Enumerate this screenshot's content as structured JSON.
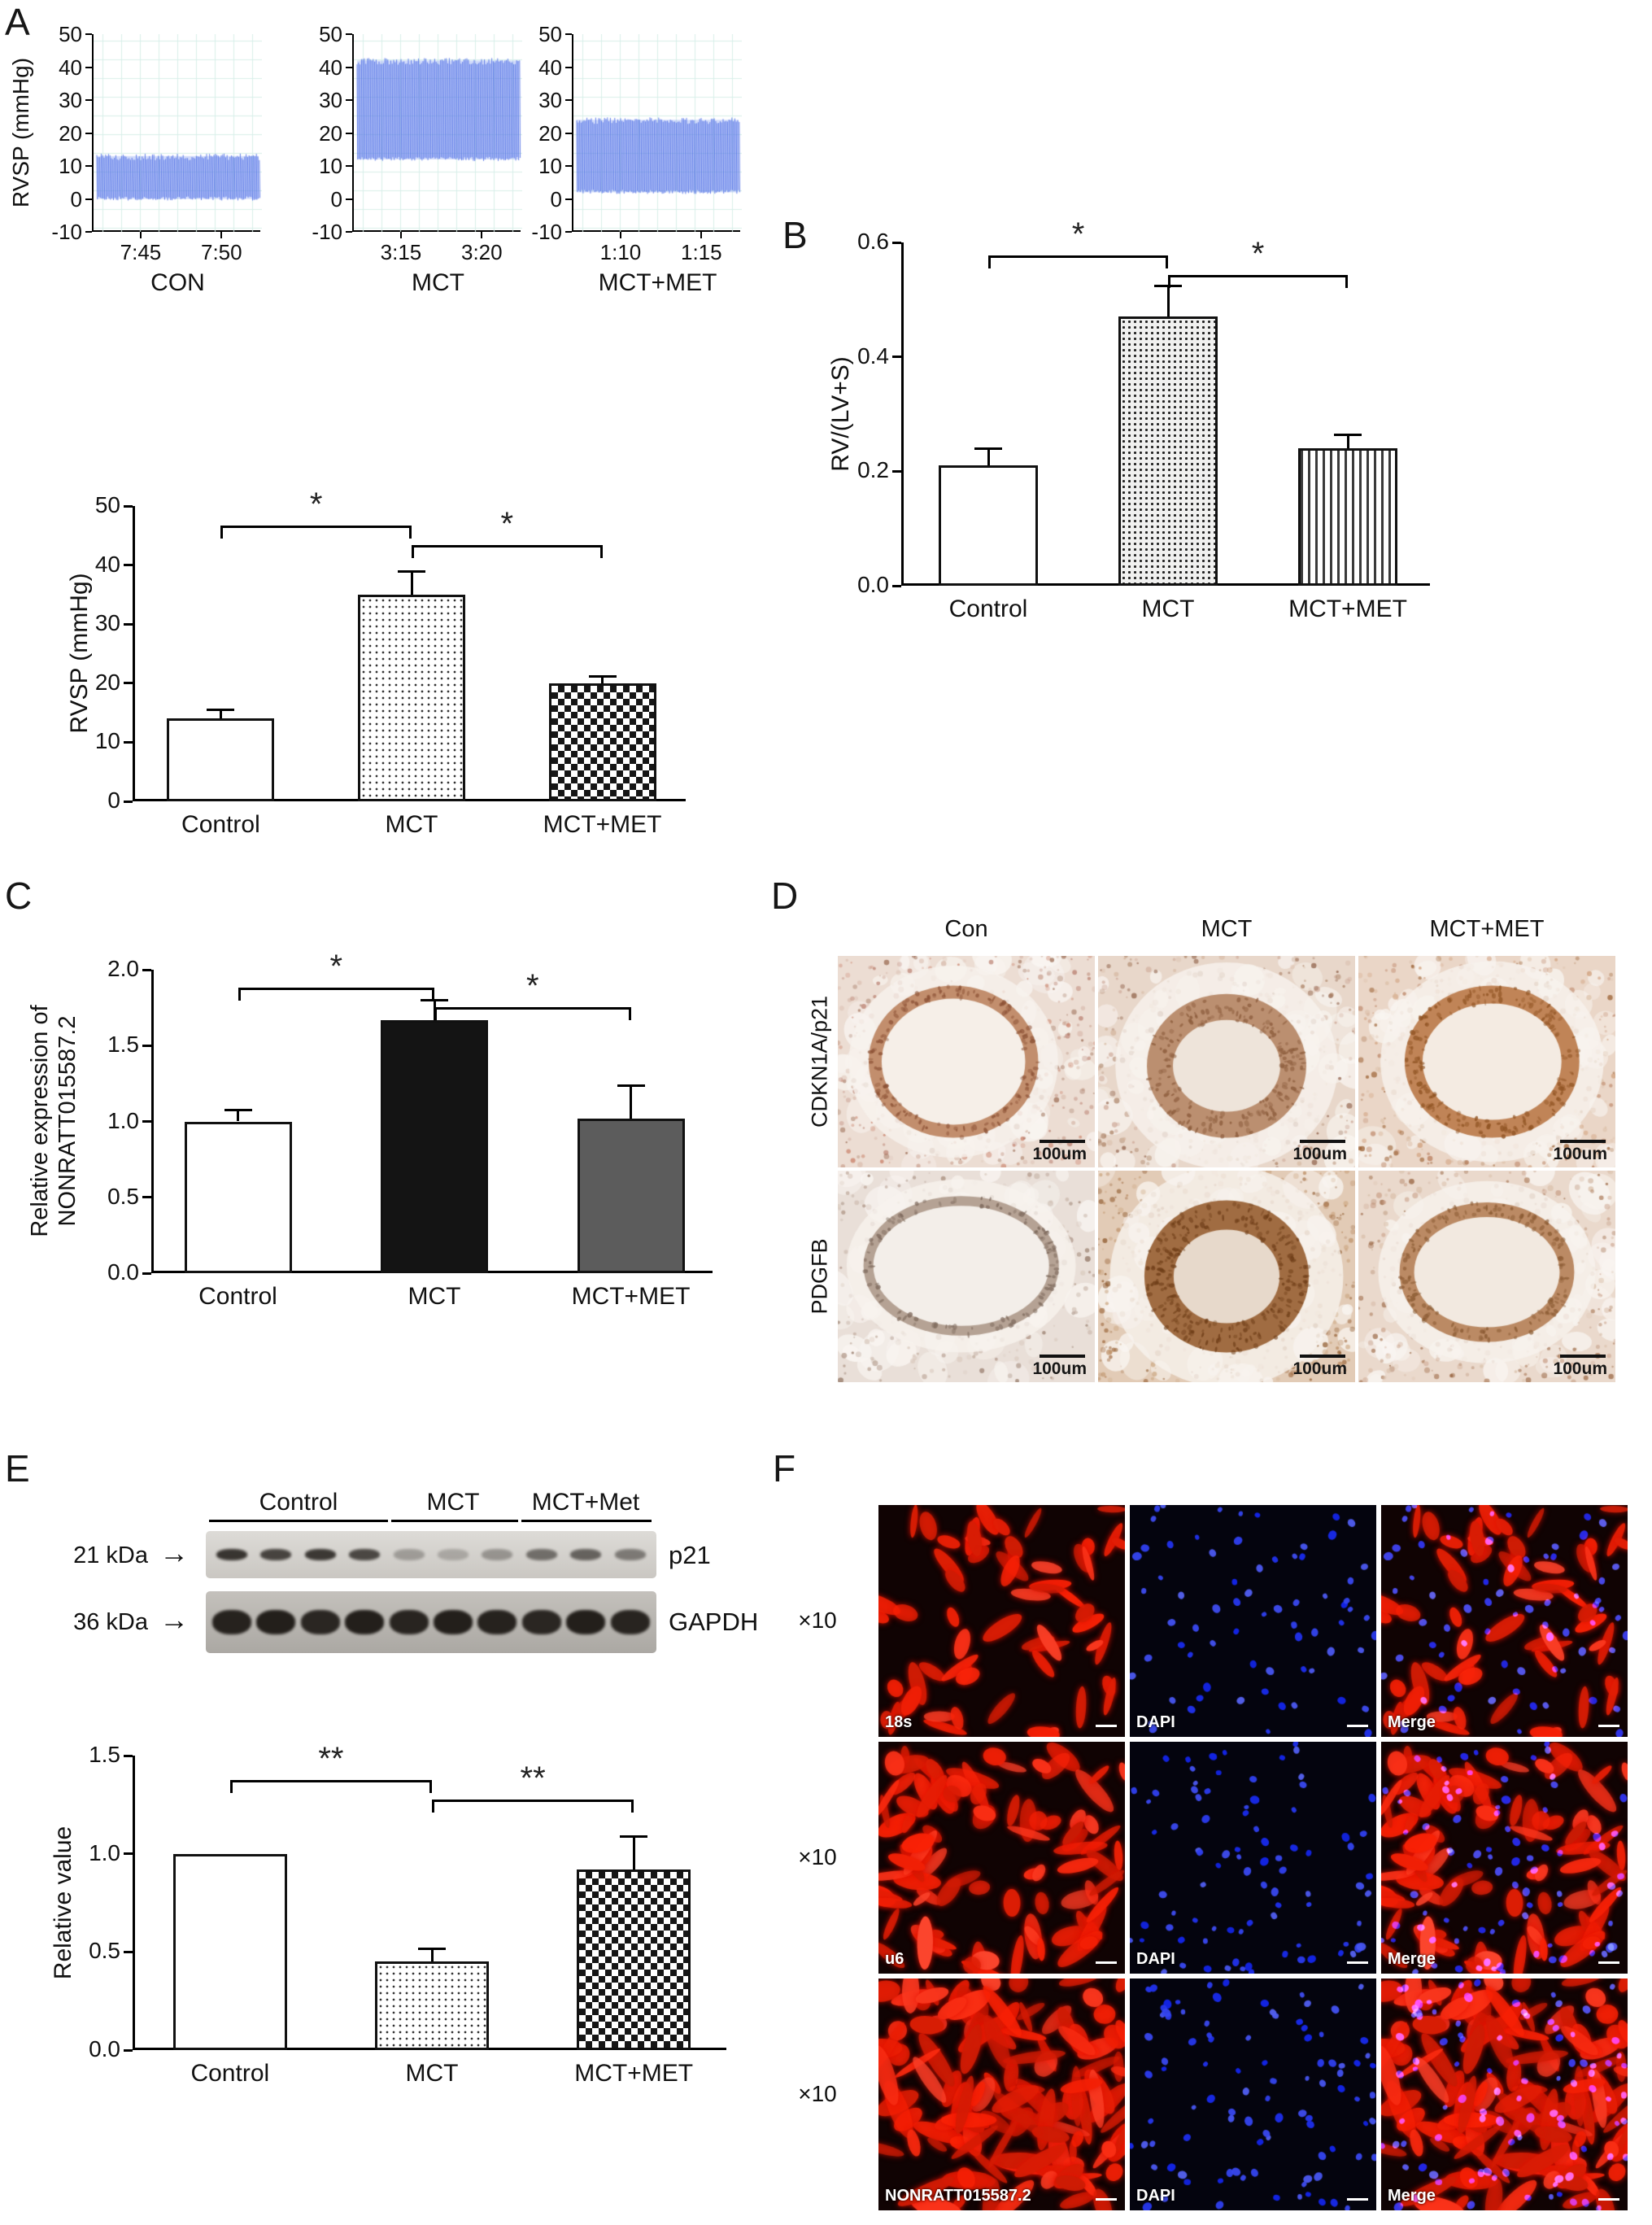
{
  "colors": {
    "trace_blue": "#4868e4",
    "grid_mint": "#d8efe9",
    "dapi_blue": "#3746e8",
    "signal_red": "#e41000",
    "stain_brown": "#a06c42",
    "bar_black": "#141414",
    "bar_gray": "#5c5c5c"
  },
  "panelA": {
    "label": "A",
    "traces_ylabel": "RVSP (mmHg)"
  },
  "panelB": {
    "label": "B"
  },
  "panelC": {
    "label": "C"
  },
  "panelD": {
    "label": "D",
    "columns": [
      "Con",
      "MCT",
      "MCT+MET"
    ],
    "rows": [
      "CDKN1A/p21",
      "PDGFB"
    ],
    "scale_bar": "100um"
  },
  "panelE": {
    "label": "E",
    "groups": [
      "Control",
      "MCT",
      "MCT+Met"
    ],
    "blots": [
      {
        "size_label": "21 kDa",
        "arrow": "→",
        "protein": "p21"
      },
      {
        "size_label": "36 kDa",
        "arrow": "→",
        "protein": "GAPDH"
      }
    ]
  },
  "panelF": {
    "label": "F",
    "magnification": "×10",
    "grid": [
      [
        "18s",
        "DAPI",
        "Merge"
      ],
      [
        "u6",
        "DAPI",
        "Merge"
      ],
      [
        "NONRATT015587.2",
        "DAPI",
        "Merge"
      ]
    ]
  },
  "chart_data": [
    {
      "id": "rvsp_traces",
      "type": "line",
      "ylabel": "RVSP (mmHg)",
      "ylim": [
        -10,
        50
      ],
      "yticks": [
        "50",
        "40",
        "30",
        "20",
        "10",
        "0",
        "-10"
      ],
      "series": [
        {
          "name": "CON",
          "xticks": [
            "7:45",
            "7:50"
          ],
          "band_min": 0,
          "band_max": 13
        },
        {
          "name": "MCT",
          "xticks": [
            "3:15",
            "3:20"
          ],
          "band_min": 12,
          "band_max": 42
        },
        {
          "name": "MCT+MET",
          "xticks": [
            "1:10",
            "1:15"
          ],
          "band_min": 2,
          "band_max": 24
        }
      ]
    },
    {
      "id": "rvsp_bar",
      "type": "bar",
      "ylabel": "RVSP (mmHg)",
      "categories": [
        "Control",
        "MCT",
        "MCT+MET"
      ],
      "values": [
        14,
        35,
        20
      ],
      "errors": [
        1.5,
        4,
        1.2
      ],
      "ylim": [
        0,
        50
      ],
      "yticks": [
        "0",
        "10",
        "20",
        "30",
        "40",
        "50"
      ],
      "significance": [
        {
          "pair": [
            0,
            1
          ],
          "label": "*"
        },
        {
          "pair": [
            1,
            2
          ],
          "label": "*"
        }
      ]
    },
    {
      "id": "fulton_index",
      "type": "bar",
      "ylabel": "RV/(LV+S)",
      "categories": [
        "Control",
        "MCT",
        "MCT+MET"
      ],
      "values": [
        0.21,
        0.47,
        0.24
      ],
      "errors": [
        0.03,
        0.055,
        0.025
      ],
      "ylim": [
        0,
        0.6
      ],
      "yticks": [
        "0.0",
        "0.2",
        "0.4",
        "0.6"
      ],
      "significance": [
        {
          "pair": [
            0,
            1
          ],
          "label": "*"
        },
        {
          "pair": [
            1,
            2
          ],
          "label": "*"
        }
      ]
    },
    {
      "id": "nonratt_expression",
      "type": "bar",
      "ylabel": "Relative expression of NONRATT015587.2",
      "ylabel_lines": [
        "Relative expression of",
        "NONRATT015587.2"
      ],
      "categories": [
        "Control",
        "MCT",
        "MCT+MET"
      ],
      "values": [
        1.0,
        1.67,
        1.02
      ],
      "errors": [
        0.08,
        0.13,
        0.22
      ],
      "ylim": [
        0,
        2.0
      ],
      "yticks": [
        "0.0",
        "0.5",
        "1.0",
        "1.5",
        "2.0"
      ],
      "significance": [
        {
          "pair": [
            0,
            1
          ],
          "label": "*"
        },
        {
          "pair": [
            1,
            2
          ],
          "label": "*"
        }
      ]
    },
    {
      "id": "p21_relative_value",
      "type": "bar",
      "ylabel": "Relative value",
      "categories": [
        "Control",
        "MCT",
        "MCT+MET"
      ],
      "values": [
        1.0,
        0.45,
        0.92
      ],
      "errors": [
        0,
        0.07,
        0.17
      ],
      "ylim": [
        0,
        1.5
      ],
      "yticks": [
        "0.0",
        "0.5",
        "1.0",
        "1.5"
      ],
      "significance": [
        {
          "pair": [
            0,
            1
          ],
          "label": "**"
        },
        {
          "pair": [
            1,
            2
          ],
          "label": "**"
        }
      ]
    }
  ]
}
